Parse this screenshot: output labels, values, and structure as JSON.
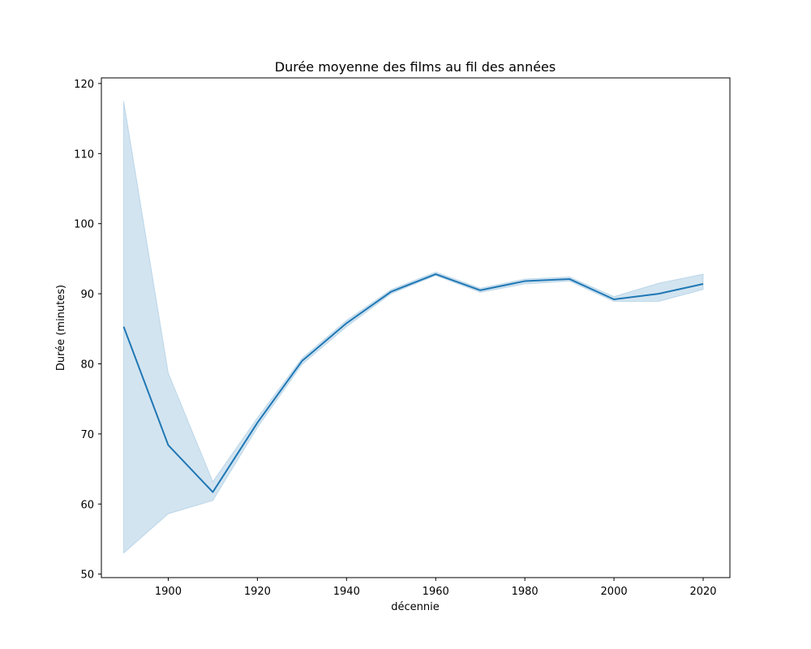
{
  "chart_data": {
    "type": "line",
    "title": "Durée moyenne des films au fil des années",
    "xlabel": "décennie",
    "ylabel": "Durée (minutes)",
    "xlim": [
      1885,
      2026
    ],
    "ylim": [
      49.5,
      120.8
    ],
    "x_ticks": [
      1900,
      1920,
      1940,
      1960,
      1980,
      2000,
      2020
    ],
    "y_ticks": [
      50,
      60,
      70,
      80,
      90,
      100,
      110,
      120
    ],
    "grid": false,
    "legend": "none",
    "series": [
      {
        "x": [
          1890,
          1900,
          1910,
          1920,
          1930,
          1940,
          1950,
          1960,
          1970,
          1980,
          1990,
          2000,
          2010,
          2020
        ],
        "values": [
          85.3,
          68.4,
          61.7,
          71.6,
          80.4,
          85.8,
          90.3,
          92.8,
          90.5,
          91.8,
          92.1,
          89.2,
          90.0,
          91.4
        ],
        "ci_lower": [
          53.0,
          58.6,
          60.5,
          70.9,
          79.9,
          85.3,
          90.0,
          92.6,
          90.2,
          91.4,
          91.8,
          88.9,
          88.9,
          90.6
        ],
        "ci_upper": [
          117.5,
          78.7,
          63.2,
          72.3,
          80.8,
          86.2,
          90.6,
          93.1,
          90.8,
          92.1,
          92.4,
          89.6,
          91.5,
          92.8
        ],
        "color": "#1f77b4"
      }
    ]
  }
}
